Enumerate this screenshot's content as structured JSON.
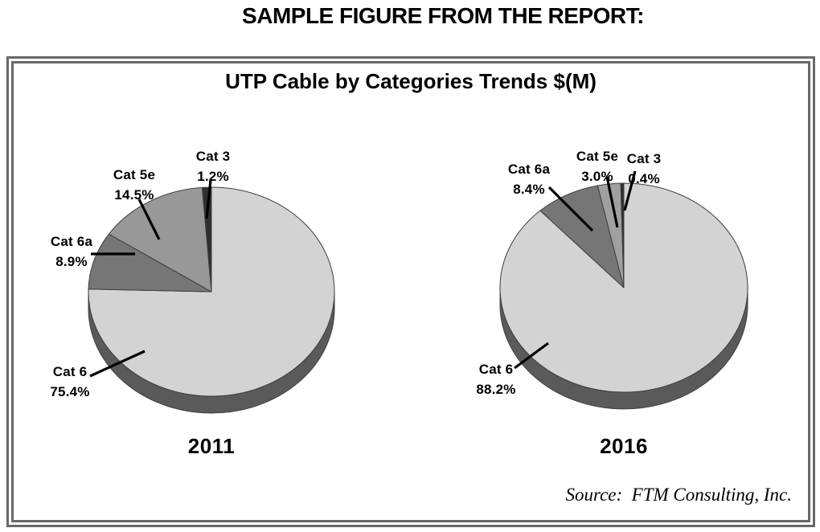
{
  "page": {
    "heading": "SAMPLE FIGURE FROM THE REPORT:",
    "source_note": "Source:  FTM Consulting, Inc."
  },
  "figure": {
    "title": "UTP Cable by Categories Trends $(M)"
  },
  "colors": {
    "frame_border": "#686868",
    "pie_side": "#5a5a5a",
    "slice_outline": "#3f3f3f",
    "leader_line": "#000000",
    "text": "#000000",
    "background": "#ffffff"
  },
  "chart_data": [
    {
      "type": "pie",
      "year": "2011",
      "title": "UTP Cable by Categories Trends $(M)",
      "style": "3d-grayscale",
      "start_angle_deg": 0,
      "direction": "clockwise",
      "slices": [
        {
          "label": "Cat 6",
          "value": 75.4,
          "display": "75.4%",
          "color": "#d3d3d3"
        },
        {
          "label": "Cat 6a",
          "value": 8.9,
          "display": "8.9%",
          "color": "#767676"
        },
        {
          "label": "Cat 5e",
          "value": 14.5,
          "display": "14.5%",
          "color": "#989898"
        },
        {
          "label": "Cat 3",
          "value": 1.2,
          "display": "1.2%",
          "color": "#2f2f2f"
        }
      ]
    },
    {
      "type": "pie",
      "year": "2016",
      "title": "UTP Cable by Categories Trends $(M)",
      "style": "3d-grayscale",
      "start_angle_deg": 0,
      "direction": "clockwise",
      "slices": [
        {
          "label": "Cat 6",
          "value": 88.2,
          "display": "88.2%",
          "color": "#d3d3d3"
        },
        {
          "label": "Cat 6a",
          "value": 8.4,
          "display": "8.4%",
          "color": "#767676"
        },
        {
          "label": "Cat 5e",
          "value": 3.0,
          "display": "3.0%",
          "color": "#a0a0a0"
        },
        {
          "label": "Cat 3",
          "value": 0.4,
          "display": "0.4%",
          "color": "#2f2f2f"
        }
      ]
    }
  ]
}
